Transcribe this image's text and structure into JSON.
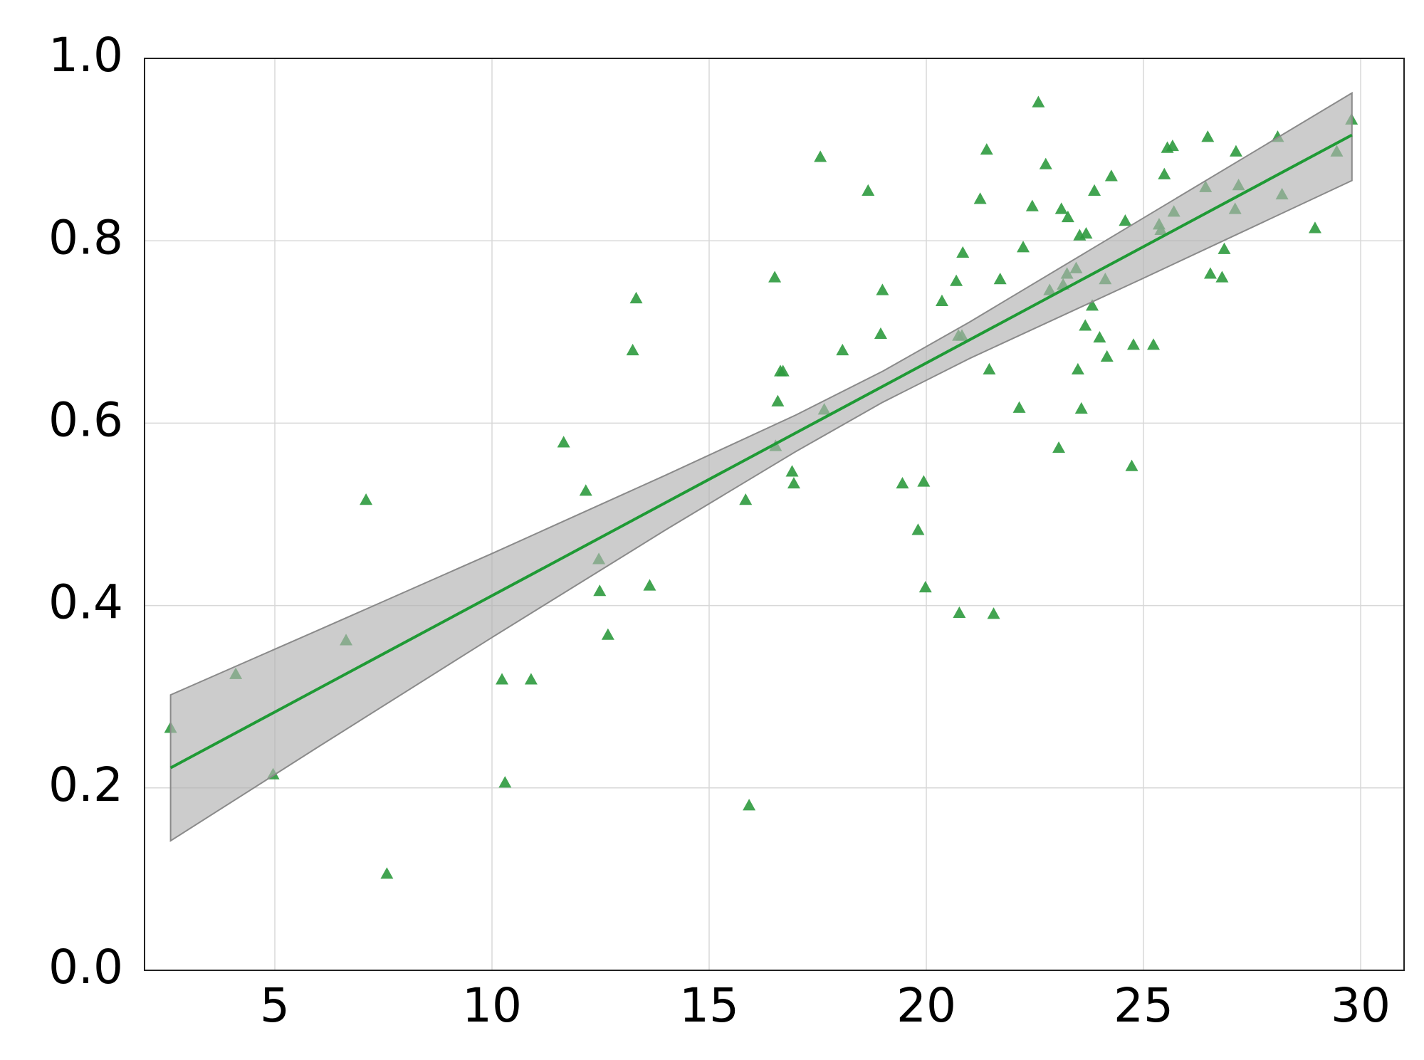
{
  "chart_data": {
    "type": "scatter",
    "xlim": [
      2,
      31
    ],
    "ylim": [
      0,
      1
    ],
    "xticks": [
      5,
      10,
      15,
      20,
      25,
      30
    ],
    "yticks": [
      {
        "value": 0,
        "label": "0.0"
      },
      0.2,
      0.4,
      0.6,
      0.8,
      {
        "value": 1,
        "label": "1.0"
      }
    ],
    "grid": true,
    "series": [
      {
        "kind": "points",
        "color": "#2e9a3e",
        "x": [
          2.6,
          4.1,
          4.96,
          6.64,
          7.1,
          7.58,
          10.23,
          10.9,
          10.3,
          11.65,
          12.16,
          12.46,
          12.48,
          12.67,
          13.24,
          13.32,
          13.63,
          15.84,
          15.92,
          16.51,
          16.53,
          16.58,
          16.64,
          16.7,
          16.91,
          16.95,
          17.56,
          17.65,
          18.07,
          18.66,
          18.95,
          18.99,
          19.45,
          19.81,
          19.94,
          19.98,
          20.36,
          20.69,
          20.74,
          20.76,
          20.82,
          20.84,
          21.24,
          21.39,
          21.45,
          21.55,
          21.7,
          22.14,
          22.23,
          22.44,
          22.58,
          22.75,
          22.84,
          23.05,
          23.11,
          23.15,
          23.24,
          23.26,
          23.45,
          23.49,
          23.53,
          23.57,
          23.66,
          23.68,
          23.82,
          23.87,
          23.99,
          24.12,
          24.16,
          24.26,
          24.58,
          24.73,
          24.77,
          25.23,
          25.36,
          25.4,
          25.48,
          25.55,
          25.67,
          25.7,
          26.43,
          26.48,
          26.54,
          26.81,
          26.86,
          27.11,
          27.13,
          27.19,
          28.09,
          28.19,
          28.95,
          29.45,
          29.79
        ],
        "values": [
          0.266,
          0.325,
          0.215,
          0.362,
          0.516,
          0.106,
          0.319,
          0.319,
          0.206,
          0.579,
          0.526,
          0.451,
          0.416,
          0.368,
          0.68,
          0.737,
          0.422,
          0.516,
          0.181,
          0.76,
          0.575,
          0.624,
          0.657,
          0.657,
          0.547,
          0.534,
          0.892,
          0.615,
          0.68,
          0.855,
          0.698,
          0.746,
          0.534,
          0.483,
          0.536,
          0.42,
          0.734,
          0.756,
          0.696,
          0.392,
          0.696,
          0.787,
          0.846,
          0.9,
          0.659,
          0.391,
          0.758,
          0.617,
          0.793,
          0.838,
          0.952,
          0.884,
          0.746,
          0.573,
          0.835,
          0.752,
          0.764,
          0.826,
          0.77,
          0.659,
          0.806,
          0.616,
          0.707,
          0.808,
          0.729,
          0.855,
          0.694,
          0.758,
          0.673,
          0.871,
          0.822,
          0.553,
          0.686,
          0.686,
          0.818,
          0.812,
          0.873,
          0.902,
          0.904,
          0.832,
          0.859,
          0.914,
          0.764,
          0.76,
          0.791,
          0.835,
          0.898,
          0.861,
          0.914,
          0.851,
          0.814,
          0.898,
          0.933
        ]
      },
      {
        "kind": "band",
        "color": "#b0b0b0",
        "x": [
          2.6,
          6,
          10,
          14,
          17,
          19,
          21,
          25,
          29.8
        ],
        "lower": [
          0.142,
          0.245,
          0.365,
          0.483,
          0.569,
          0.623,
          0.671,
          0.759,
          0.866
        ],
        "upper": [
          0.302,
          0.373,
          0.457,
          0.543,
          0.609,
          0.657,
          0.711,
          0.825,
          0.962
        ]
      },
      {
        "kind": "line",
        "color": "#1f9a35",
        "x": [
          2.6,
          29.8
        ],
        "values": [
          0.222,
          0.916
        ]
      }
    ]
  }
}
